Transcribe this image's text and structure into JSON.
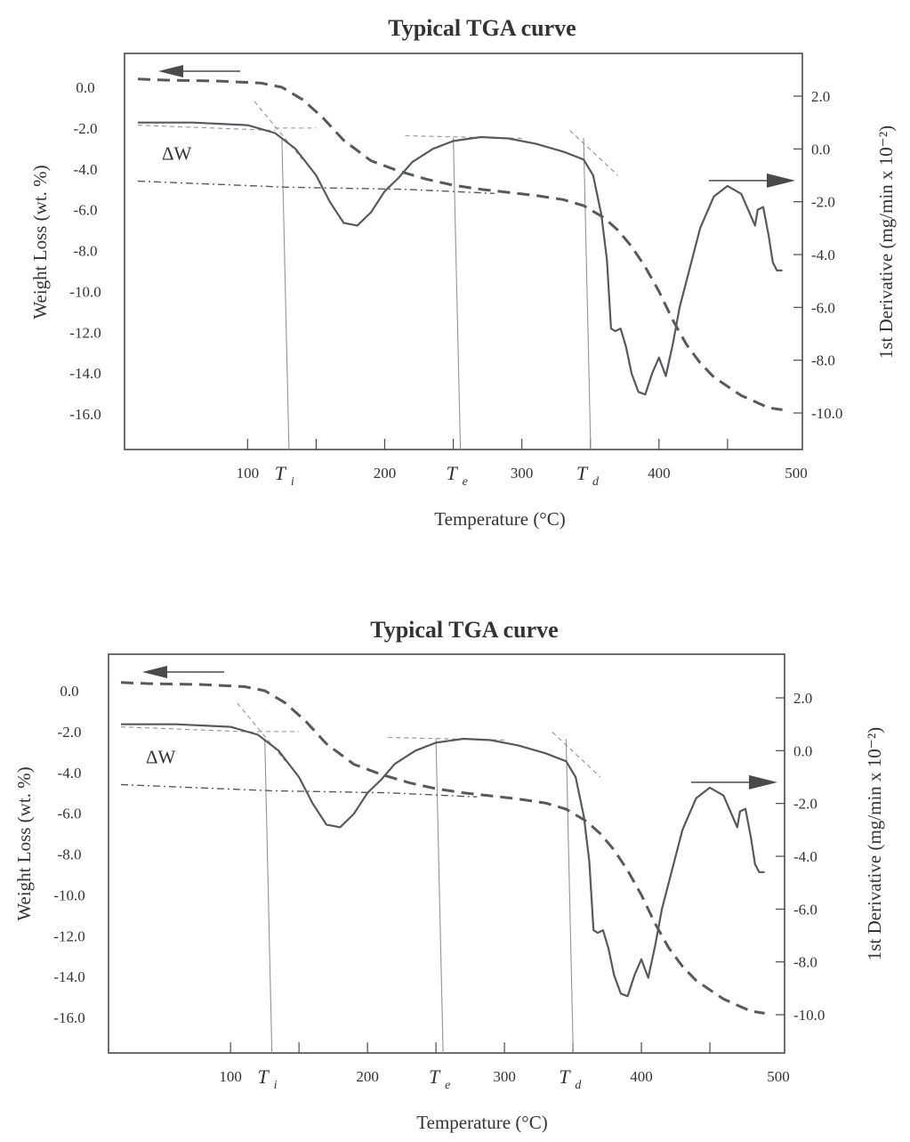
{
  "colors": {
    "curve": "#555a5e",
    "frame": "#4a4a4a",
    "guide": "#8f9498",
    "paper": "#ffffff"
  },
  "chart_data": [
    {
      "type": "line",
      "title": "Typical TGA curve",
      "xlabel": "Temperature (°C)",
      "ylabel": "Weight Loss (wt. %)",
      "y2label": "1st Derivative (mg/min x 10⁻²)",
      "xlim": [
        20,
        500
      ],
      "ylim": [
        -18,
        1.5
      ],
      "y2lim": [
        -11.5,
        3
      ],
      "x_tick_labels": [
        "100",
        "200",
        "300",
        "400",
        "500"
      ],
      "y_tick_labels": [
        "0.0",
        "-2.0",
        "-4.0",
        "-6.0",
        "-8.0",
        "-10.0",
        "-12.0",
        "-14.0",
        "-16.0"
      ],
      "y2_tick_labels": [
        "2.0",
        "0.0",
        "-2.0",
        "-4.0",
        "-6.0",
        "-8.0",
        "-10.0"
      ],
      "markers": [
        {
          "label": "T",
          "sub": "i",
          "x": 125
        },
        {
          "label": "T",
          "sub": "e",
          "x": 250
        },
        {
          "label": "T",
          "sub": "d",
          "x": 345
        }
      ],
      "annotation": "ΔW",
      "series": [
        {
          "axis": "left",
          "style": "dashed",
          "x": [
            20,
            40,
            80,
            110,
            125,
            140,
            155,
            170,
            190,
            210,
            230,
            250,
            270,
            290,
            310,
            330,
            345,
            360,
            370,
            380,
            390,
            400,
            410,
            420,
            430,
            440,
            460,
            480,
            490
          ],
          "y": [
            0.4,
            0.35,
            0.3,
            0.2,
            0.0,
            -0.6,
            -1.5,
            -2.6,
            -3.6,
            -4.1,
            -4.5,
            -4.8,
            -5.0,
            -5.15,
            -5.3,
            -5.5,
            -5.8,
            -6.4,
            -7.0,
            -7.8,
            -8.8,
            -10.0,
            -11.4,
            -12.6,
            -13.5,
            -14.2,
            -15.1,
            -15.7,
            -15.8
          ]
        },
        {
          "axis": "right",
          "style": "solid",
          "x": [
            20,
            60,
            100,
            120,
            135,
            150,
            160,
            170,
            180,
            190,
            200,
            210,
            220,
            235,
            250,
            270,
            290,
            310,
            330,
            345,
            352,
            358,
            362,
            365,
            368,
            372,
            376,
            380,
            385,
            390,
            395,
            400,
            405,
            410,
            415,
            420,
            425,
            430,
            440,
            450,
            460,
            470,
            472,
            476,
            480,
            483,
            486,
            490
          ],
          "y": [
            1.0,
            1.0,
            0.9,
            0.6,
            0.0,
            -1.0,
            -2.0,
            -2.8,
            -2.9,
            -2.4,
            -1.6,
            -1.1,
            -0.5,
            0.0,
            0.3,
            0.45,
            0.4,
            0.2,
            -0.1,
            -0.4,
            -1.0,
            -2.5,
            -4.2,
            -6.8,
            -6.9,
            -6.8,
            -7.5,
            -8.5,
            -9.2,
            -9.3,
            -8.5,
            -7.9,
            -8.6,
            -7.4,
            -6.0,
            -5.0,
            -4.0,
            -3.0,
            -1.8,
            -1.4,
            -1.7,
            -2.9,
            -2.3,
            -2.2,
            -3.3,
            -4.3,
            -4.6,
            -4.6
          ]
        },
        {
          "axis": "left",
          "style": "dashdot",
          "x": [
            20,
            130,
            215,
            280
          ],
          "y": [
            -4.6,
            -4.9,
            -5.0,
            -5.2
          ]
        }
      ]
    },
    {
      "type": "line",
      "title": "Typical TGA curve",
      "xlabel": "Temperature (°C)",
      "ylabel": "Weight Loss (wt. %)",
      "y2label": "1st Derivative (mg/min x 10⁻²)",
      "xlim": [
        20,
        500
      ],
      "ylim": [
        -18,
        1.5
      ],
      "y2lim": [
        -11.5,
        3
      ],
      "x_tick_labels": [
        "100",
        "200",
        "300",
        "400",
        "500"
      ],
      "y_tick_labels": [
        "0.0",
        "-2.0",
        "-4.0",
        "-6.0",
        "-8.0",
        "-10.0",
        "-12.0",
        "-14.0",
        "-16.0"
      ],
      "y2_tick_labels": [
        "2.0",
        "0.0",
        "-2.0",
        "-4.0",
        "-6.0",
        "-8.0",
        "-10.0"
      ],
      "markers": [
        {
          "label": "T",
          "sub": "i",
          "x": 125
        },
        {
          "label": "T",
          "sub": "e",
          "x": 250
        },
        {
          "label": "T",
          "sub": "d",
          "x": 345
        }
      ],
      "annotation": "ΔW",
      "series": [
        {
          "axis": "left",
          "style": "dashed",
          "x": [
            20,
            40,
            80,
            110,
            125,
            140,
            155,
            170,
            190,
            210,
            230,
            250,
            270,
            290,
            310,
            330,
            345,
            360,
            370,
            380,
            390,
            400,
            410,
            420,
            430,
            440,
            460,
            480,
            490
          ],
          "y": [
            0.4,
            0.35,
            0.3,
            0.2,
            0.0,
            -0.6,
            -1.5,
            -2.6,
            -3.6,
            -4.1,
            -4.5,
            -4.8,
            -5.0,
            -5.15,
            -5.3,
            -5.5,
            -5.8,
            -6.4,
            -7.0,
            -7.8,
            -8.8,
            -10.0,
            -11.4,
            -12.6,
            -13.5,
            -14.2,
            -15.1,
            -15.7,
            -15.8
          ]
        },
        {
          "axis": "right",
          "style": "solid",
          "x": [
            20,
            60,
            100,
            120,
            135,
            150,
            160,
            170,
            180,
            190,
            200,
            210,
            220,
            235,
            250,
            270,
            290,
            310,
            330,
            345,
            352,
            358,
            362,
            365,
            368,
            372,
            376,
            380,
            385,
            390,
            395,
            400,
            405,
            410,
            415,
            420,
            425,
            430,
            440,
            450,
            460,
            470,
            472,
            476,
            480,
            483,
            486,
            490
          ],
          "y": [
            1.0,
            1.0,
            0.9,
            0.6,
            0.0,
            -1.0,
            -2.0,
            -2.8,
            -2.9,
            -2.4,
            -1.6,
            -1.1,
            -0.5,
            0.0,
            0.3,
            0.45,
            0.4,
            0.2,
            -0.1,
            -0.4,
            -1.0,
            -2.5,
            -4.2,
            -6.8,
            -6.9,
            -6.8,
            -7.5,
            -8.5,
            -9.2,
            -9.3,
            -8.5,
            -7.9,
            -8.6,
            -7.4,
            -6.0,
            -5.0,
            -4.0,
            -3.0,
            -1.8,
            -1.4,
            -1.7,
            -2.9,
            -2.3,
            -2.2,
            -3.3,
            -4.3,
            -4.6,
            -4.6
          ]
        },
        {
          "axis": "left",
          "style": "dashdot",
          "x": [
            20,
            130,
            215,
            280
          ],
          "y": [
            -4.6,
            -4.9,
            -5.0,
            -5.2
          ]
        }
      ]
    }
  ]
}
